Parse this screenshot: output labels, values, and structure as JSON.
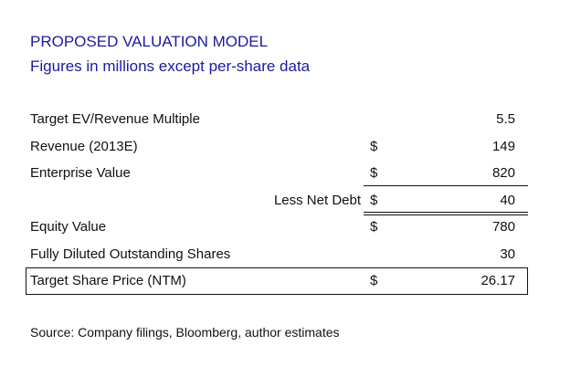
{
  "header": {
    "title": "PROPOSED VALUATION MODEL",
    "subtitle": "Figures in millions except per-share data"
  },
  "colors": {
    "heading": "#1a1aa0",
    "text": "#111111"
  },
  "rows": [
    {
      "label": "Target EV/Revenue Multiple",
      "currency": "",
      "value": "5.5"
    },
    {
      "label": "Revenue (2013E)",
      "currency": "$",
      "value": "149"
    },
    {
      "label": "Enterprise Value",
      "currency": "$",
      "value": "820"
    },
    {
      "label": "Less Net Debt",
      "currency": "$",
      "value": "40"
    },
    {
      "label": "Equity Value",
      "currency": "$",
      "value": "780"
    },
    {
      "label": "Fully Diluted Outstanding Shares",
      "currency": "",
      "value": "30"
    },
    {
      "label": "Target Share Price (NTM)",
      "currency": "$",
      "value": "26.17"
    }
  ],
  "footer": {
    "source": "Source: Company filings, Bloomberg, author estimates"
  }
}
